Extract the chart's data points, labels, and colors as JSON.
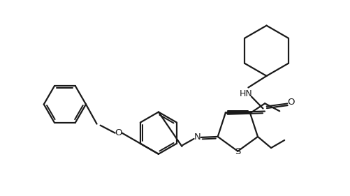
{
  "bg_color": "#ffffff",
  "line_color": "#1a1a1a",
  "lw": 1.6,
  "fig_w": 5.02,
  "fig_h": 2.81,
  "dpi": 100,
  "xlim": [
    0,
    10
  ],
  "ylim": [
    0,
    5.6
  ]
}
